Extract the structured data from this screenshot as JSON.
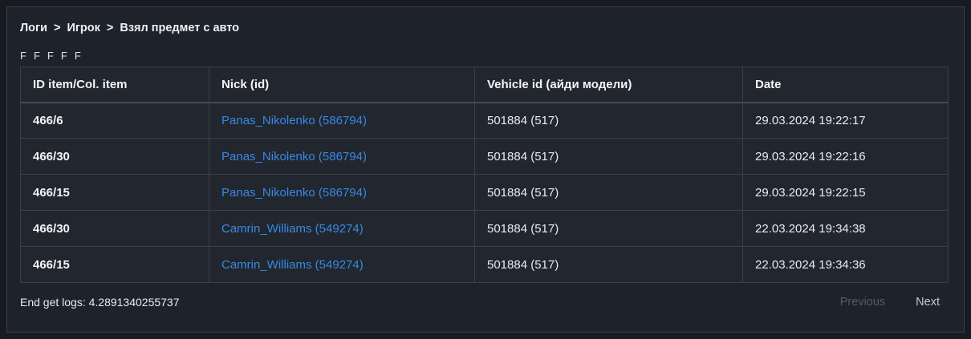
{
  "breadcrumb": {
    "items": [
      "Логи",
      "Игрок",
      "Взял предмет с авто"
    ],
    "separator": ">"
  },
  "filters": {
    "chars": [
      "F",
      "F",
      "F",
      "F",
      "F"
    ]
  },
  "table": {
    "columns": [
      "ID item/Col. item",
      "Nick (id)",
      "Vehicle id (айди модели)",
      "Date"
    ],
    "rows": [
      {
        "item_id": "466/6",
        "nick": "Panas_Nikolenko (586794)",
        "vehicle_id": "501884 (517)",
        "date": "29.03.2024 19:22:17"
      },
      {
        "item_id": "466/30",
        "nick": "Panas_Nikolenko (586794)",
        "vehicle_id": "501884 (517)",
        "date": "29.03.2024 19:22:16"
      },
      {
        "item_id": "466/15",
        "nick": "Panas_Nikolenko (586794)",
        "vehicle_id": "501884 (517)",
        "date": "29.03.2024 19:22:15"
      },
      {
        "item_id": "466/30",
        "nick": "Camrin_Williams (549274)",
        "vehicle_id": "501884 (517)",
        "date": "22.03.2024 19:34:38"
      },
      {
        "item_id": "466/15",
        "nick": "Camrin_Williams (549274)",
        "vehicle_id": "501884 (517)",
        "date": "22.03.2024 19:34:36"
      }
    ]
  },
  "footer": {
    "end_log_text": "End get logs: 4.2891340255737",
    "previous_label": "Previous",
    "next_label": "Next"
  },
  "colors": {
    "panel_background": "#1e222a",
    "panel_border": "#394049",
    "table_border": "#3a3f49",
    "link_blue": "#3889e3",
    "text_primary": "#e9ebee",
    "previous_disabled": "#565b63"
  }
}
